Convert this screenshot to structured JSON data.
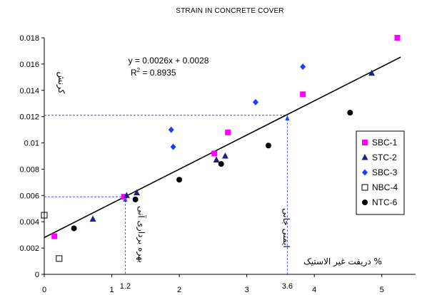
{
  "chart_data": {
    "type": "scatter",
    "title": "STRAIN IN CONCRETE COVER",
    "xlabel": "دریفت غیر الاستیک %",
    "ylabel": "کرنش",
    "xlim": [
      0,
      5.5
    ],
    "ylim": [
      0,
      0.018
    ],
    "x_ticks": [
      0,
      1,
      2,
      3,
      4,
      5
    ],
    "x_tick_labels": [
      "0",
      "1",
      "2",
      "3",
      "4",
      "5"
    ],
    "extra_x_tick_labels": [
      {
        "x": 1.2,
        "label": "1.2"
      },
      {
        "x": 3.6,
        "label": "3.6"
      }
    ],
    "y_ticks": [
      0,
      0.002,
      0.004,
      0.006,
      0.008,
      0.01,
      0.012,
      0.014,
      0.016,
      0.018
    ],
    "y_tick_labels": [
      "0",
      "0.002",
      "0.004",
      "0.006",
      "0.008",
      "0.01",
      "0.012",
      "0.014",
      "0.016",
      "0.018"
    ],
    "grid": false,
    "legend_position": "right",
    "series": [
      {
        "name": "SBC-1",
        "marker": "square",
        "color": "#ff00ff",
        "points": [
          [
            0.15,
            0.0029
          ],
          [
            1.18,
            0.0059
          ],
          [
            2.52,
            0.0092
          ],
          [
            2.72,
            0.0108
          ],
          [
            3.83,
            0.0137
          ],
          [
            5.23,
            0.018
          ]
        ]
      },
      {
        "name": "STC-2",
        "marker": "triangle",
        "color": "#1a237e",
        "points": [
          [
            0.72,
            0.0042
          ],
          [
            1.22,
            0.006
          ],
          [
            1.37,
            0.0062
          ],
          [
            2.55,
            0.0087
          ],
          [
            2.68,
            0.009
          ],
          [
            4.85,
            0.0153
          ]
        ]
      },
      {
        "name": "SBC-3",
        "marker": "diamond",
        "color": "#1e3cff",
        "points": [
          [
            1.88,
            0.011
          ],
          [
            1.91,
            0.0097
          ],
          [
            3.13,
            0.0131
          ],
          [
            3.83,
            0.0158
          ]
        ]
      },
      {
        "name": "NBC-4",
        "marker": "open-square",
        "color": "#000000",
        "points": [
          [
            0.0,
            0.0045
          ],
          [
            0.22,
            0.0012
          ]
        ]
      },
      {
        "name": "NTC-6",
        "marker": "circle",
        "color": "#000000",
        "points": [
          [
            0.44,
            0.0035
          ],
          [
            1.35,
            0.0057
          ],
          [
            2.0,
            0.0072
          ],
          [
            2.62,
            0.0084
          ],
          [
            3.32,
            0.0098
          ],
          [
            4.53,
            0.0123
          ]
        ]
      }
    ],
    "trendline": {
      "slope": 0.0026,
      "intercept": 0.0028,
      "x_range": [
        0,
        5.28
      ],
      "equation_lines": [
        "y = 0.0026x + 0.0028",
        "R",
        "2",
        " = 0.8935"
      ]
    },
    "reference_lines": [
      {
        "x": 1.2,
        "y": 0.0059,
        "label": "بهره برداری آنی"
      },
      {
        "x": 3.6,
        "y": 0.0121,
        "label": "ایمنی جانی"
      }
    ]
  },
  "colors": {
    "axis": "#000000",
    "trendline": "#000000",
    "reference": "#1e3cff"
  }
}
